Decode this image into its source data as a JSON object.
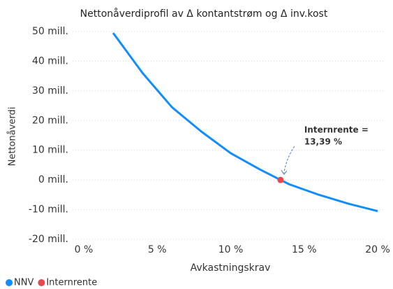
{
  "chart_data": {
    "type": "line",
    "title": "Nettonåverdiprofil av Δ kontantstrøm og Δ inv.kost",
    "x_label": "Avkastningskrav",
    "y_label": "Nettonåverdi",
    "x": [
      2,
      4,
      6,
      8,
      10,
      12,
      13.39,
      14,
      16,
      18,
      20
    ],
    "series": [
      {
        "name": "NNV",
        "color": "#118dff",
        "values": [
          49.5,
          36,
          24.5,
          16.3,
          9,
          3.5,
          0,
          -1.5,
          -5,
          -8,
          -10.5
        ]
      },
      {
        "name": "Internrente",
        "color": "#e8484d",
        "x": [
          13.39
        ],
        "values": [
          0
        ],
        "marker_only": true
      }
    ],
    "annotation": {
      "lines": [
        "Internrente =",
        "13,39 %"
      ],
      "color": "#e8484d"
    },
    "xlim": [
      -0.4,
      20.4
    ],
    "ylim": [
      -20,
      50
    ],
    "xticks": [
      {
        "value": 0,
        "label": "0 %"
      },
      {
        "value": 5,
        "label": "5 %"
      },
      {
        "value": 10,
        "label": "10 %"
      },
      {
        "value": 15,
        "label": "15 %"
      },
      {
        "value": 20,
        "label": "20 %"
      }
    ],
    "yticks": [
      {
        "value": -20,
        "label": "-20 mill."
      },
      {
        "value": -10,
        "label": "-10 mill."
      },
      {
        "value": 0,
        "label": "0 mill."
      },
      {
        "value": 10,
        "label": "10 mill."
      },
      {
        "value": 20,
        "label": "20 mill."
      },
      {
        "value": 30,
        "label": "30 mill."
      },
      {
        "value": 40,
        "label": "40 mill."
      },
      {
        "value": 50,
        "label": "50 mill."
      }
    ],
    "grid": true,
    "legend": "bottom-left"
  }
}
